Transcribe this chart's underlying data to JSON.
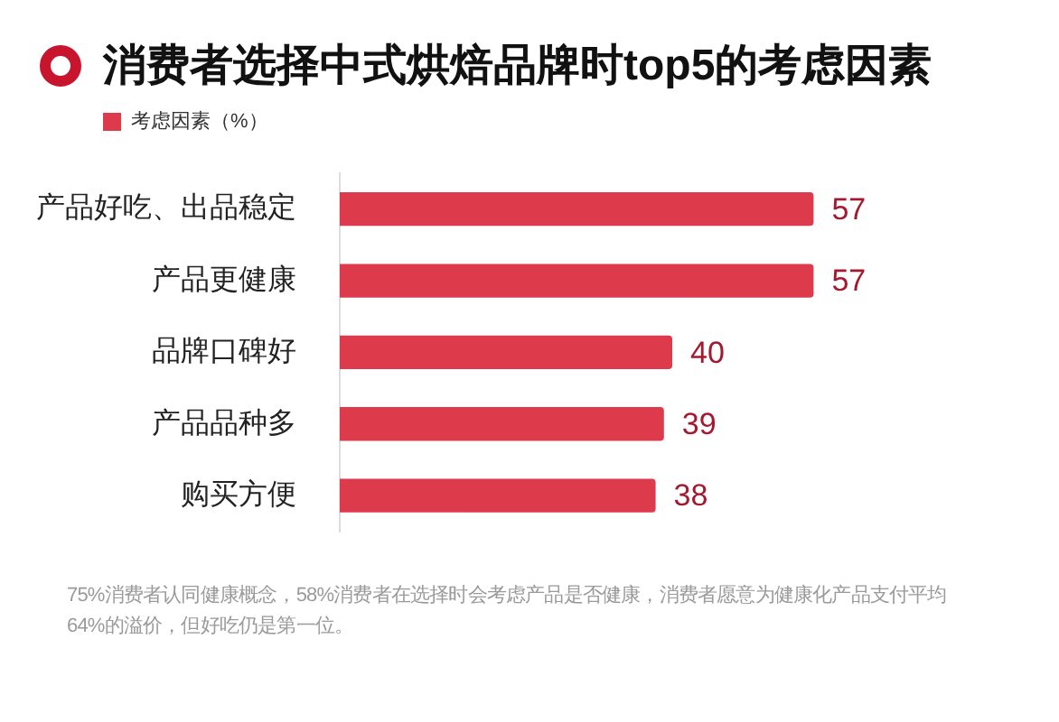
{
  "chart_data": {
    "type": "bar",
    "orientation": "horizontal",
    "title": "消费者选择中式烘焙品牌时top5的考虑因素",
    "categories": [
      "产品好吃、出品稳定",
      "产品更健康",
      "品牌口碑好",
      "产品品种多",
      "购买方便"
    ],
    "series": [
      {
        "name": "考虑因素（%）",
        "color": "#dd3b4b",
        "values": [
          57,
          57,
          40,
          39,
          38
        ]
      }
    ],
    "data_labels": true,
    "legend": "top left",
    "grid": false,
    "tick_labels": "y",
    "annotations": [
      "75%消费者认同健康概念，58%消费者在选择时会考虑产品是否健康，消费者愿意为健康化产品支付平均64%的溢价，但好吃仍是第一位。"
    ]
  }
}
